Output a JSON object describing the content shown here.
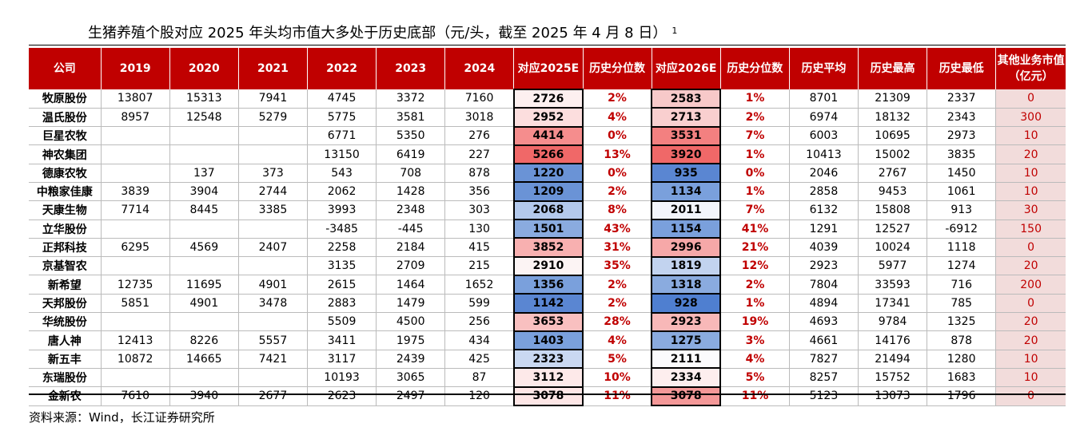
{
  "title": "生猪养殖个股对应 2025 年头均市值大多处于历史底部（元/头，截至 2025 年 4 月 8 日）",
  "title_note": "1",
  "source": "资料来源：Wind，长江证券研究所",
  "headers": [
    "公司",
    "2019",
    "2020",
    "2021",
    "2022",
    "2023",
    "2024",
    "对应2025E",
    "历史分位数",
    "对应2026E",
    "历史分位数",
    "历史平均",
    "历史最高",
    "历史最低",
    "其他业务市值（亿元）"
  ],
  "rows": [
    {
      "company": "牧原股份",
      "y2019": "13807",
      "y2020": "15313",
      "y2021": "7941",
      "y2022": "4745",
      "y2023": "3372",
      "y2024": "7160",
      "e2025": "2726",
      "p2025": "2%",
      "e2026": "2583",
      "p2026": "1%",
      "avg": "8701",
      "high": "21309",
      "low": "2337",
      "other": "0",
      "c2025": "#fdf0f0",
      "c2026": "#f7c9c9"
    },
    {
      "company": "温氏股份",
      "y2019": "8957",
      "y2020": "12548",
      "y2021": "5279",
      "y2022": "5775",
      "y2023": "3581",
      "y2024": "3018",
      "e2025": "2952",
      "p2025": "4%",
      "e2026": "2713",
      "p2026": "2%",
      "avg": "6974",
      "high": "18132",
      "low": "2343",
      "other": "300",
      "c2025": "#fcdede",
      "c2026": "#f9cfcf"
    },
    {
      "company": "巨星农牧",
      "y2019": "",
      "y2020": "",
      "y2021": "",
      "y2022": "6771",
      "y2023": "5350",
      "y2024": "276",
      "e2025": "4414",
      "p2025": "0%",
      "e2026": "3531",
      "p2026": "7%",
      "avg": "6003",
      "high": "10695",
      "low": "2973",
      "other": "10",
      "c2025": "#f58d8d",
      "c2026": "#f38080"
    },
    {
      "company": "神农集团",
      "y2019": "",
      "y2020": "",
      "y2021": "",
      "y2022": "13150",
      "y2023": "6419",
      "y2024": "227",
      "e2025": "5266",
      "p2025": "13%",
      "e2026": "3920",
      "p2026": "1%",
      "avg": "10413",
      "high": "15002",
      "low": "3835",
      "other": "20",
      "c2025": "#f06868",
      "c2026": "#f06868"
    },
    {
      "company": "德康农牧",
      "y2019": "",
      "y2020": "137",
      "y2021": "373",
      "y2022": "543",
      "y2023": "708",
      "y2024": "878",
      "e2025": "1220",
      "p2025": "0%",
      "e2026": "935",
      "p2026": "0%",
      "avg": "2046",
      "high": "2767",
      "low": "1450",
      "other": "10",
      "c2025": "#6a93d6",
      "c2026": "#5a86d2"
    },
    {
      "company": "中粮家佳康",
      "y2019": "3839",
      "y2020": "3904",
      "y2021": "2744",
      "y2022": "2062",
      "y2023": "1428",
      "y2024": "356",
      "e2025": "1209",
      "p2025": "2%",
      "e2026": "1134",
      "p2026": "1%",
      "avg": "2858",
      "high": "9453",
      "low": "1061",
      "other": "10",
      "c2025": "#6a93d6",
      "c2026": "#7aa0dc"
    },
    {
      "company": "天康生物",
      "y2019": "7714",
      "y2020": "8445",
      "y2021": "3385",
      "y2022": "3993",
      "y2023": "2348",
      "y2024": "303",
      "e2025": "2068",
      "p2025": "8%",
      "e2026": "2011",
      "p2026": "7%",
      "avg": "6132",
      "high": "15808",
      "low": "913",
      "other": "30",
      "c2025": "#b3c9ec",
      "c2026": "#f3f5fb"
    },
    {
      "company": "立华股份",
      "y2019": "",
      "y2020": "",
      "y2021": "",
      "y2022": "-3485",
      "y2023": "-445",
      "y2024": "130",
      "e2025": "1501",
      "p2025": "43%",
      "e2026": "1154",
      "p2026": "41%",
      "avg": "1291",
      "high": "12527",
      "low": "-6912",
      "other": "150",
      "c2025": "#8aabdf",
      "c2026": "#7aa0dc"
    },
    {
      "company": "正邦科技",
      "y2019": "6295",
      "y2020": "4569",
      "y2021": "2407",
      "y2022": "2258",
      "y2023": "2184",
      "y2024": "415",
      "e2025": "3852",
      "p2025": "31%",
      "e2026": "2996",
      "p2026": "21%",
      "avg": "4039",
      "high": "10024",
      "low": "1118",
      "other": "0",
      "c2025": "#f8b0b0",
      "c2026": "#f6a8a8"
    },
    {
      "company": "京基智农",
      "y2019": "",
      "y2020": "",
      "y2021": "",
      "y2022": "3135",
      "y2023": "2709",
      "y2024": "215",
      "e2025": "2910",
      "p2025": "35%",
      "e2026": "1819",
      "p2026": "12%",
      "avg": "2923",
      "high": "5977",
      "low": "1274",
      "other": "20",
      "c2025": "#fcf4f4",
      "c2026": "#c2d3ef"
    },
    {
      "company": "新希望",
      "y2019": "12735",
      "y2020": "11695",
      "y2021": "4901",
      "y2022": "2615",
      "y2023": "1464",
      "y2024": "1652",
      "e2025": "1356",
      "p2025": "2%",
      "e2026": "1318",
      "p2026": "2%",
      "avg": "7804",
      "high": "33593",
      "low": "716",
      "other": "200",
      "c2025": "#7aa0dc",
      "c2026": "#8aabdf"
    },
    {
      "company": "天邦股份",
      "y2019": "5851",
      "y2020": "4901",
      "y2021": "3478",
      "y2022": "2883",
      "y2023": "1479",
      "y2024": "599",
      "e2025": "1142",
      "p2025": "2%",
      "e2026": "928",
      "p2026": "1%",
      "avg": "4894",
      "high": "17341",
      "low": "785",
      "other": "0",
      "c2025": "#5a86d2",
      "c2026": "#4f7fd0"
    },
    {
      "company": "华统股份",
      "y2019": "",
      "y2020": "",
      "y2021": "",
      "y2022": "5509",
      "y2023": "4500",
      "y2024": "256",
      "e2025": "3653",
      "p2025": "28%",
      "e2026": "2923",
      "p2026": "19%",
      "avg": "4693",
      "high": "9784",
      "low": "1325",
      "other": "20",
      "c2025": "#f9c0c0",
      "c2026": "#f8b8b8"
    },
    {
      "company": "唐人神",
      "y2019": "12413",
      "y2020": "8226",
      "y2021": "5557",
      "y2022": "3411",
      "y2023": "1975",
      "y2024": "434",
      "e2025": "1403",
      "p2025": "4%",
      "e2026": "1275",
      "p2026": "3%",
      "avg": "4661",
      "high": "14176",
      "low": "878",
      "other": "20",
      "c2025": "#7aa0dc",
      "c2026": "#8aabdf"
    },
    {
      "company": "新五丰",
      "y2019": "10872",
      "y2020": "14665",
      "y2021": "7421",
      "y2022": "3117",
      "y2023": "2439",
      "y2024": "425",
      "e2025": "2323",
      "p2025": "5%",
      "e2026": "2111",
      "p2026": "4%",
      "avg": "7827",
      "high": "21494",
      "low": "1280",
      "other": "10",
      "c2025": "#c9d8f1",
      "c2026": "#fbfbfd"
    },
    {
      "company": "东瑞股份",
      "y2019": "",
      "y2020": "",
      "y2021": "",
      "y2022": "10193",
      "y2023": "3065",
      "y2024": "87",
      "e2025": "3112",
      "p2025": "10%",
      "e2026": "2334",
      "p2026": "5%",
      "avg": "8257",
      "high": "15752",
      "low": "1683",
      "other": "10",
      "c2025": "#fde9e9",
      "c2026": "#fdeeee"
    },
    {
      "company": "金新农",
      "y2019": "7610",
      "y2020": "3940",
      "y2021": "2677",
      "y2022": "2623",
      "y2023": "2497",
      "y2024": "120",
      "e2025": "3078",
      "p2025": "11%",
      "e2026": "3078",
      "p2026": "11%",
      "avg": "5123",
      "high": "13073",
      "low": "1796",
      "other": "0",
      "c2025": "#fde6e6",
      "c2026": "#f49898"
    }
  ]
}
